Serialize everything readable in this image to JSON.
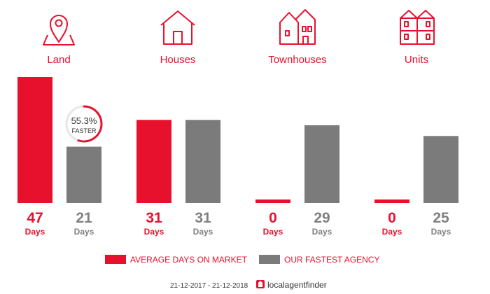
{
  "colors": {
    "red": "#e8112d",
    "grey": "#7b7b7b",
    "text_grey": "#808080"
  },
  "categories": [
    {
      "name": "Land",
      "icon": "map-pin-icon"
    },
    {
      "name": "Houses",
      "icon": "house-icon"
    },
    {
      "name": "Townhouses",
      "icon": "townhouses-icon"
    },
    {
      "name": "Units",
      "icon": "units-icon"
    }
  ],
  "chart_data": {
    "type": "bar",
    "categories": [
      "Land",
      "Houses",
      "Townhouses",
      "Units"
    ],
    "series": [
      {
        "name": "AVERAGE DAYS ON MARKET",
        "values": [
          47,
          31,
          0,
          0
        ],
        "color": "#e8112d"
      },
      {
        "name": "OUR FASTEST AGENCY",
        "values": [
          21,
          31,
          29,
          25
        ],
        "color": "#7b7b7b"
      }
    ],
    "value_unit": "Days",
    "ylim": [
      0,
      47
    ],
    "annotation": {
      "category": "Land",
      "value": "55.3%",
      "label": "FASTER",
      "progress": 0.553
    }
  },
  "legend": [
    {
      "label": "AVERAGE DAYS ON MARKET",
      "color": "#e8112d"
    },
    {
      "label": "OUR FASTEST AGENCY",
      "color": "#7b7b7b"
    }
  ],
  "footer": {
    "date_range": "21-12-2017 - 21-12-2018",
    "brand": "localagentfinder"
  }
}
